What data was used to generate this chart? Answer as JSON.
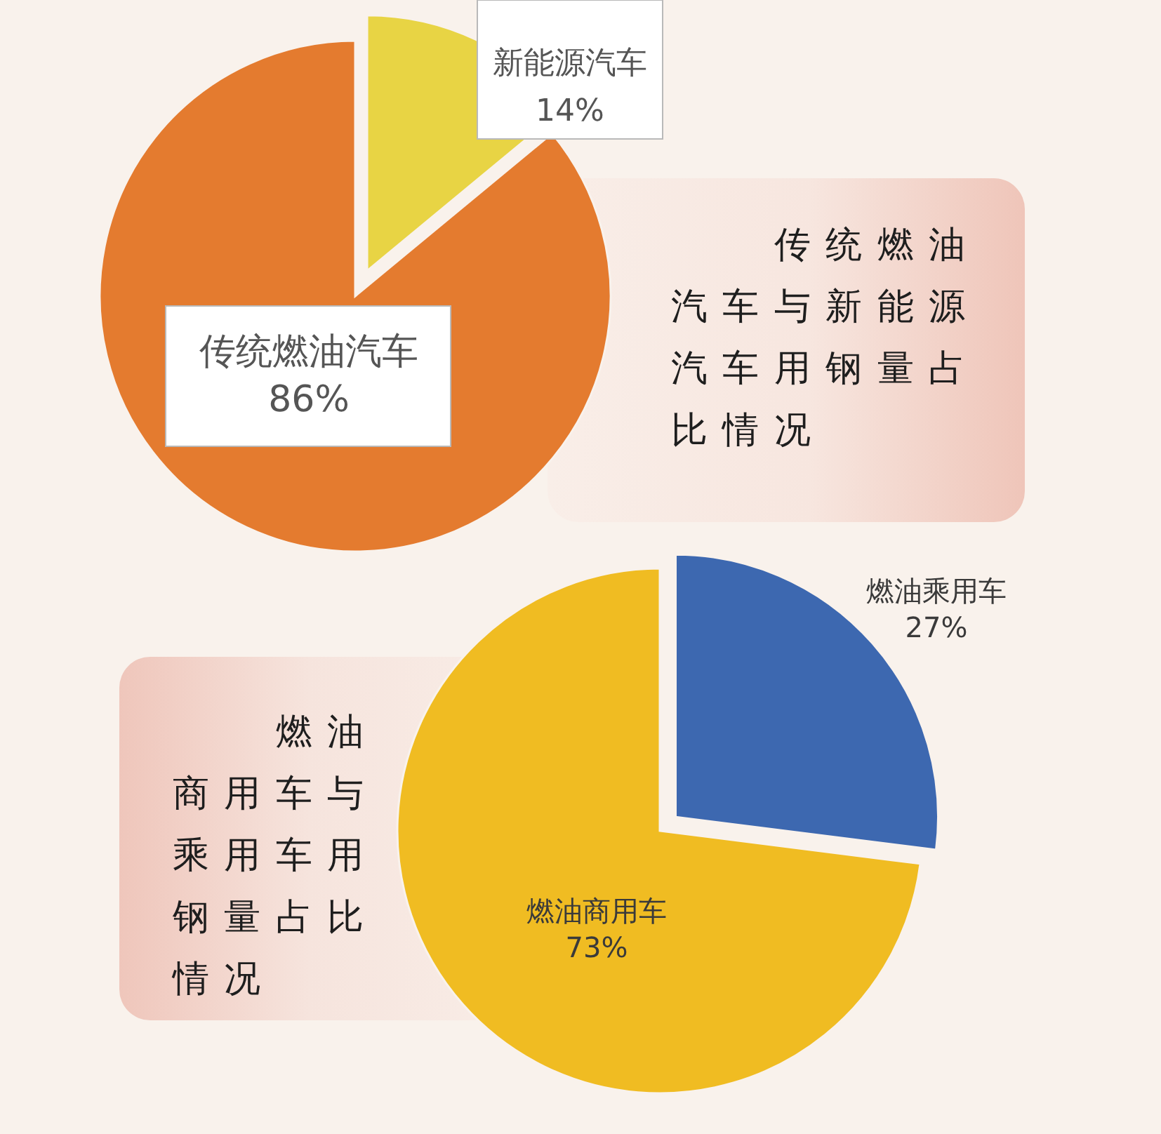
{
  "chart_data": [
    {
      "type": "pie",
      "title": "传统燃油汽车与新能源汽车用钢量占比情况",
      "categories": [
        "新能源汽车",
        "传统燃油汽车"
      ],
      "values": [
        14,
        86
      ],
      "colors": [
        "#e8d444",
        "#e47b2f"
      ],
      "value_labels": [
        "14%",
        "86%"
      ]
    },
    {
      "type": "pie",
      "title": "燃油商用车与乘用车用钢量占比情况",
      "categories": [
        "燃油乘用车",
        "燃油商用车"
      ],
      "values": [
        27,
        73
      ],
      "colors": [
        "#3d68b0",
        "#f0bc22"
      ],
      "value_labels": [
        "27%",
        "73%"
      ]
    }
  ]
}
